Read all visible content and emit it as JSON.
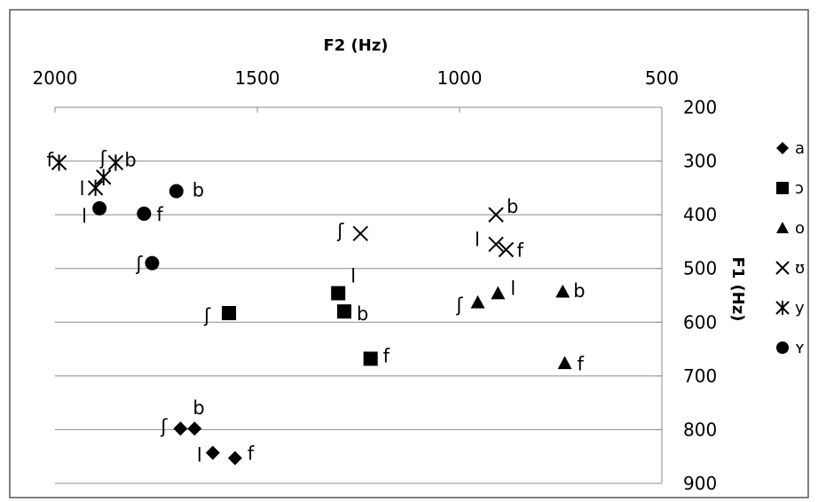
{
  "chart_data": {
    "type": "scatter",
    "title": "",
    "xlabel": "F2 (Hz)",
    "ylabel": "F1 (Hz)",
    "xlim": [
      2000,
      500
    ],
    "ylim": [
      900,
      200
    ],
    "x_reversed": true,
    "y_reversed": true,
    "x_axis_position": "top",
    "y_axis_position": "right",
    "x_ticks": [
      "2000",
      "1500",
      "1000",
      "500"
    ],
    "y_ticks": [
      "200",
      "300",
      "400",
      "500",
      "600",
      "700",
      "800",
      "900"
    ],
    "grid": true,
    "legend_position": "right",
    "series": [
      {
        "name": "a",
        "marker": "diamond",
        "points": [
          {
            "x": 1690,
            "y": 798,
            "label": "ʃ"
          },
          {
            "x": 1655,
            "y": 798,
            "label": "b"
          },
          {
            "x": 1610,
            "y": 843,
            "label": "l"
          },
          {
            "x": 1555,
            "y": 853,
            "label": "f"
          }
        ]
      },
      {
        "name": "ɔ",
        "marker": "square",
        "points": [
          {
            "x": 1570,
            "y": 583,
            "label": "ʃ"
          },
          {
            "x": 1300,
            "y": 546,
            "label": "l"
          },
          {
            "x": 1285,
            "y": 580,
            "label": "b"
          },
          {
            "x": 1220,
            "y": 668,
            "label": "f"
          }
        ]
      },
      {
        "name": "o",
        "marker": "triangle",
        "points": [
          {
            "x": 955,
            "y": 563,
            "label": "ʃ"
          },
          {
            "x": 905,
            "y": 546,
            "label": "l"
          },
          {
            "x": 745,
            "y": 543,
            "label": "b"
          },
          {
            "x": 740,
            "y": 676,
            "label": "f"
          }
        ]
      },
      {
        "name": "ʊ",
        "marker": "x",
        "points": [
          {
            "x": 1245,
            "y": 435,
            "label": "ʃ"
          },
          {
            "x": 910,
            "y": 400,
            "label": "b"
          },
          {
            "x": 910,
            "y": 455,
            "label": "l"
          },
          {
            "x": 885,
            "y": 465,
            "label": "f"
          }
        ]
      },
      {
        "name": "y",
        "marker": "asterisk",
        "points": [
          {
            "x": 1990,
            "y": 303,
            "label": "f"
          },
          {
            "x": 1880,
            "y": 330,
            "label": "ʃ"
          },
          {
            "x": 1850,
            "y": 303,
            "label": "b"
          },
          {
            "x": 1900,
            "y": 350,
            "label": "l"
          }
        ]
      },
      {
        "name": "ʏ",
        "marker": "circle",
        "points": [
          {
            "x": 1700,
            "y": 356,
            "label": "b"
          },
          {
            "x": 1890,
            "y": 388,
            "label": "l"
          },
          {
            "x": 1780,
            "y": 398,
            "label": "f"
          },
          {
            "x": 1760,
            "y": 490,
            "label": "ʃ"
          }
        ]
      }
    ]
  }
}
